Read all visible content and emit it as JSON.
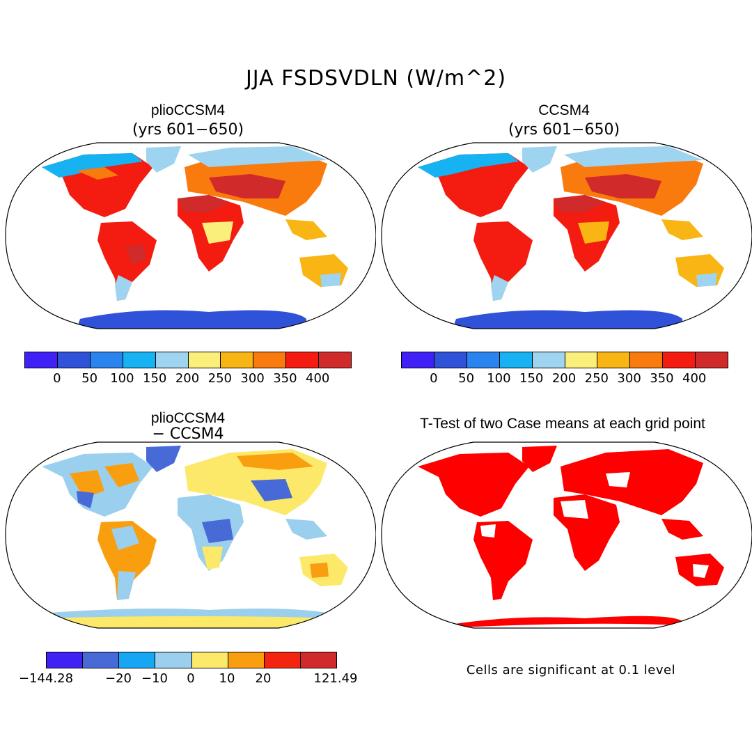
{
  "figure": {
    "title": "JJA FSDSVDLN (W/m^2)"
  },
  "panels": {
    "top_left": {
      "title": "plioCCSM4",
      "subtitle": "(yrs 601−650)"
    },
    "top_right": {
      "title": "CCSM4",
      "subtitle": "(yrs 601−650)"
    },
    "bottom_left": {
      "title": "plioCCSM4",
      "subtitle": "− CCSM4"
    },
    "bottom_right": {
      "title": "T-Test of two Case means at each grid point"
    }
  },
  "colorbars": {
    "absolute": {
      "colors": [
        "#4021f5",
        "#2f52d8",
        "#2a84f0",
        "#17b2f2",
        "#9fd4f0",
        "#fbef7c",
        "#f9b513",
        "#f97a0d",
        "#f41b10",
        "#d02a2a"
      ],
      "labels": [
        "0",
        "50",
        "100",
        "150",
        "200",
        "250",
        "300",
        "350",
        "400"
      ]
    },
    "difference": {
      "colors": [
        "#4021f5",
        "#476ad6",
        "#17a6f4",
        "#9bcfee",
        "#fce96a",
        "#f99e0f",
        "#f42510",
        "#d02a2a"
      ],
      "labels": [
        "−144.28",
        "−20",
        "−10",
        "0",
        "10",
        "20",
        "121.49"
      ]
    }
  },
  "footnote": "Cells are significant at 0.1 level"
}
